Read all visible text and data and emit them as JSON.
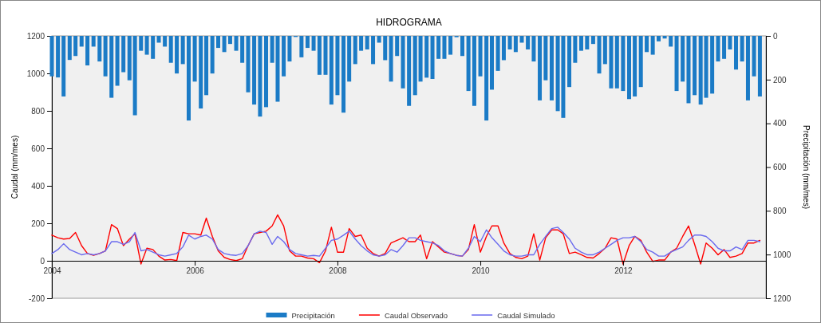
{
  "chart_data": {
    "type": "bar",
    "title": "HIDROGRAMA",
    "ylabel": "Caudal (mm/mes)",
    "y2label": "Precipitación (mm/mes)",
    "x": [
      "2004-01",
      "2004-02",
      "2004-03",
      "2004-04",
      "2004-05",
      "2004-06",
      "2004-07",
      "2004-08",
      "2004-09",
      "2004-10",
      "2004-11",
      "2004-12",
      "2005-01",
      "2005-02",
      "2005-03",
      "2005-04",
      "2005-05",
      "2005-06",
      "2005-07",
      "2005-08",
      "2005-09",
      "2005-10",
      "2005-11",
      "2005-12",
      "2006-01",
      "2006-02",
      "2006-03",
      "2006-04",
      "2006-05",
      "2006-06",
      "2006-07",
      "2006-08",
      "2006-09",
      "2006-10",
      "2006-11",
      "2006-12",
      "2007-01",
      "2007-02",
      "2007-03",
      "2007-04",
      "2007-05",
      "2007-06",
      "2007-07",
      "2007-08",
      "2007-09",
      "2007-10",
      "2007-11",
      "2007-12",
      "2008-01",
      "2008-02",
      "2008-03",
      "2008-04",
      "2008-05",
      "2008-06",
      "2008-07",
      "2008-08",
      "2008-09",
      "2008-10",
      "2008-11",
      "2008-12",
      "2009-01",
      "2009-02",
      "2009-03",
      "2009-04",
      "2009-05",
      "2009-06",
      "2009-07",
      "2009-08",
      "2009-09",
      "2009-10",
      "2009-11",
      "2009-12",
      "2010-01",
      "2010-02",
      "2010-03",
      "2010-04",
      "2010-05",
      "2010-06",
      "2010-07",
      "2010-08",
      "2010-09",
      "2010-10",
      "2010-11",
      "2010-12",
      "2011-01",
      "2011-02",
      "2011-03",
      "2011-04",
      "2011-05",
      "2011-06",
      "2011-07",
      "2011-08",
      "2011-09",
      "2011-10",
      "2011-11",
      "2011-12",
      "2012-01",
      "2012-02",
      "2012-03",
      "2012-04",
      "2012-05",
      "2012-06",
      "2012-07",
      "2012-08",
      "2012-09",
      "2012-10",
      "2012-11",
      "2012-12",
      "2013-01",
      "2013-02",
      "2013-03",
      "2013-04",
      "2013-05",
      "2013-06",
      "2013-07",
      "2013-08",
      "2013-09",
      "2013-10",
      "2013-11",
      "2013-12"
    ],
    "xlim": [
      "2004-01",
      "2014-01"
    ],
    "xticks": [
      "2004",
      "2006",
      "2008",
      "2010",
      "2012"
    ],
    "ylim": [
      -200,
      1200
    ],
    "yticks": [
      -200,
      0,
      200,
      400,
      600,
      800,
      1000,
      1200
    ],
    "y2lim": [
      1200,
      0
    ],
    "y2ticks": [
      0,
      200,
      400,
      600,
      800,
      1000,
      1200
    ],
    "legend": "bottom",
    "series": [
      {
        "name": "Precipitación",
        "axis": "y2",
        "color": "#1b7bc6",
        "values": [
          185,
          190,
          277,
          110,
          92,
          49,
          135,
          49,
          117,
          185,
          283,
          228,
          166,
          203,
          363,
          68,
          86,
          105,
          31,
          49,
          123,
          172,
          129,
          387,
          209,
          332,
          271,
          172,
          55,
          74,
          37,
          68,
          123,
          258,
          314,
          369,
          326,
          123,
          301,
          185,
          117,
          5,
          98,
          55,
          68,
          178,
          178,
          314,
          271,
          351,
          209,
          129,
          68,
          62,
          129,
          31,
          111,
          209,
          92,
          240,
          320,
          271,
          209,
          191,
          197,
          105,
          105,
          86,
          6,
          92,
          252,
          320,
          185,
          387,
          246,
          160,
          111,
          62,
          74,
          31,
          62,
          117,
          295,
          203,
          295,
          344,
          375,
          234,
          123,
          68,
          62,
          37,
          172,
          129,
          240,
          240,
          252,
          289,
          277,
          234,
          74,
          86,
          25,
          12,
          49,
          252,
          209,
          308,
          271,
          314,
          283,
          264,
          117,
          105,
          62,
          154,
          117,
          295,
          185,
          277
        ]
      },
      {
        "name": "Caudal Observado",
        "type": "line",
        "color": "#ff0000",
        "values": [
          137,
          123,
          116,
          119,
          151,
          81,
          39,
          29,
          39,
          53,
          193,
          172,
          81,
          116,
          144,
          -17,
          67,
          60,
          25,
          4,
          7,
          1,
          151,
          144,
          144,
          137,
          228,
          130,
          53,
          18,
          7,
          1,
          11,
          81,
          144,
          151,
          158,
          186,
          245,
          186,
          53,
          25,
          25,
          15,
          11,
          -10,
          53,
          179,
          46,
          46,
          172,
          130,
          137,
          67,
          39,
          25,
          39,
          95,
          109,
          123,
          102,
          102,
          137,
          11,
          102,
          74,
          46,
          39,
          29,
          25,
          60,
          193,
          46,
          130,
          186,
          186,
          95,
          39,
          18,
          11,
          25,
          144,
          4,
          123,
          165,
          165,
          144,
          39,
          46,
          32,
          18,
          15,
          39,
          67,
          123,
          116,
          -17,
          81,
          130,
          109,
          46,
          -3,
          4,
          4,
          46,
          67,
          130,
          186,
          88,
          -17,
          95,
          67,
          32,
          60,
          18,
          25,
          39,
          95,
          95,
          109
        ]
      },
      {
        "name": "Caudal Simulado",
        "type": "line",
        "color": "#6a6aee",
        "values": [
          39,
          60,
          91,
          60,
          46,
          32,
          39,
          32,
          39,
          53,
          102,
          102,
          88,
          102,
          151,
          53,
          60,
          46,
          32,
          25,
          32,
          39,
          74,
          137,
          116,
          130,
          137,
          116,
          60,
          39,
          32,
          29,
          39,
          81,
          144,
          158,
          151,
          88,
          130,
          102,
          60,
          39,
          32,
          25,
          29,
          25,
          67,
          109,
          116,
          137,
          158,
          116,
          81,
          53,
          32,
          25,
          32,
          60,
          46,
          81,
          123,
          123,
          109,
          102,
          95,
          81,
          53,
          39,
          29,
          25,
          67,
          130,
          102,
          165,
          123,
          88,
          53,
          32,
          25,
          25,
          32,
          32,
          88,
          130,
          172,
          179,
          151,
          116,
          67,
          46,
          32,
          32,
          46,
          67,
          88,
          109,
          123,
          123,
          130,
          102,
          60,
          46,
          25,
          25,
          46,
          60,
          74,
          109,
          137,
          137,
          130,
          102,
          67,
          53,
          53,
          74,
          60,
          109,
          109,
          102
        ]
      }
    ]
  }
}
